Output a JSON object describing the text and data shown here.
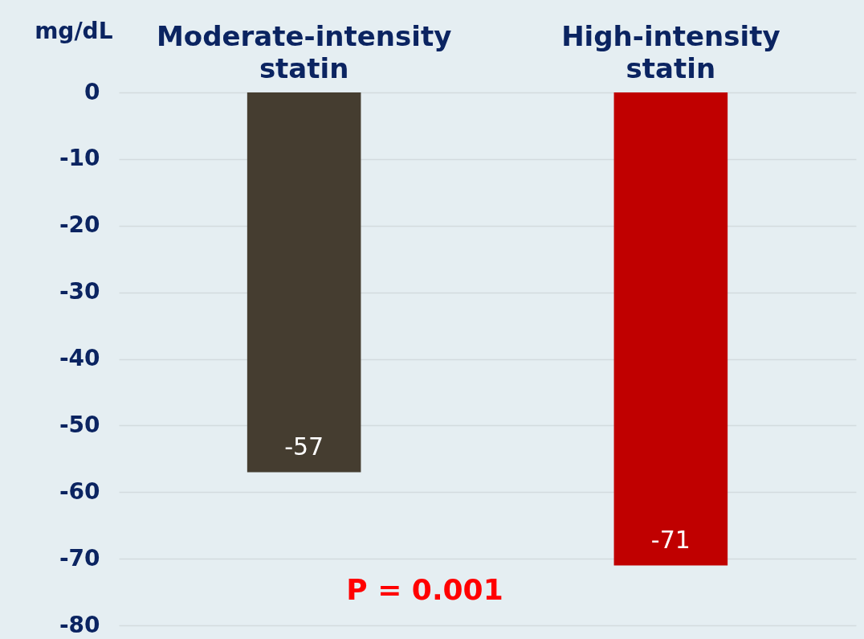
{
  "chart_data": {
    "type": "bar",
    "ylabel": "mg/dL",
    "categories": [
      "Moderate-intensity statin",
      "High-intensity statin"
    ],
    "values": [
      -57,
      -71
    ],
    "colors": [
      "#453d30",
      "#c00000"
    ],
    "ylim": [
      -80,
      0
    ],
    "yticks": [
      0,
      -10,
      -20,
      -30,
      -40,
      -50,
      -60,
      -70,
      -80
    ],
    "grid": "y",
    "data_labels": true,
    "annotations": [
      "P = 0.001"
    ]
  }
}
